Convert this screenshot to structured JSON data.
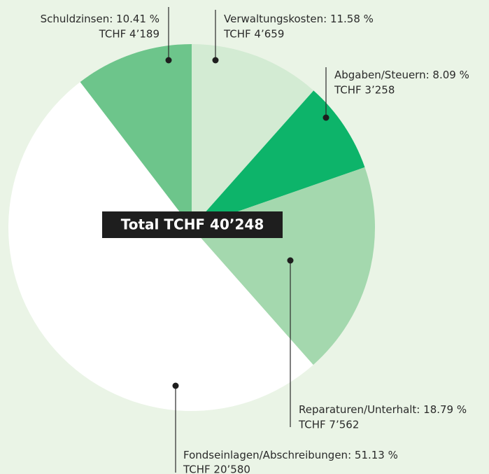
{
  "chart_data": {
    "type": "pie",
    "center_label": "Total TCHF 40’248",
    "categories": [
      "Verwaltungskosten:",
      "Abgaben/Steuern:",
      "Reparaturen/Unterhalt:",
      "Fondseinlagen/Abschreibungen:",
      "Schuldzinsen:"
    ],
    "values": [
      11.58,
      8.09,
      18.79,
      51.13,
      10.41
    ],
    "value_labels": [
      "11.58 %",
      "8.09 %",
      "18.79 %",
      "51.13 %",
      "10.41 %"
    ],
    "amount_labels": [
      "TCHF 4’659",
      "TCHF 3’258",
      "TCHF 7’562",
      "TCHF 20’580",
      "TCHF 4’189"
    ],
    "colors": [
      "#d3ebd3",
      "#0db46a",
      "#a4d8ae",
      "#ffffff",
      "#6dc58b"
    ]
  }
}
